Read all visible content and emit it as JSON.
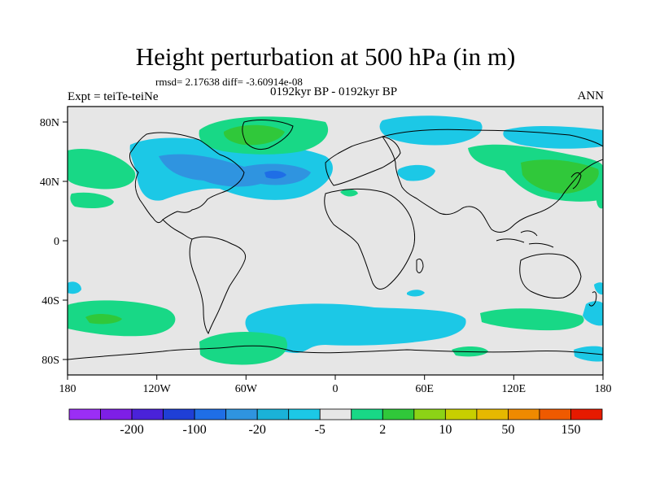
{
  "title": "Height perturbation at 500 hPa (in m)",
  "stats_line": "rmsd= 2.17638 diff= -3.60914e-08",
  "subtitle": "0192kyr BP - 0192kyr BP",
  "left_label": "Expt = teiTe-teiNe",
  "right_label": "ANN",
  "lat_ticks": [
    "80N",
    "40N",
    "0",
    "40S",
    "80S"
  ],
  "lon_ticks": [
    "180",
    "120W",
    "60W",
    "0",
    "60E",
    "120E",
    "180"
  ],
  "colorbar": {
    "colors": [
      "#9b2ef5",
      "#7e1fe6",
      "#4a22d9",
      "#1f3fd6",
      "#1f6ee6",
      "#2f94e0",
      "#1ab2d8",
      "#1cc8e6",
      "#e6e6e6",
      "#18d886",
      "#30c83a",
      "#8cd316",
      "#c8cf00",
      "#e6b800",
      "#ef8a00",
      "#ef5a00",
      "#e61a00"
    ],
    "labels": [
      "-200",
      "-100",
      "-20",
      "-5",
      "2",
      "10",
      "50",
      "150"
    ],
    "label_slots": [
      1,
      3,
      5,
      7,
      9,
      11,
      13,
      15
    ]
  },
  "anomaly_regions": [
    {
      "name": "north-atlantic-canada-low",
      "color": "#1cc8e6",
      "sign": "negative"
    },
    {
      "name": "north-atlantic-core-low",
      "color": "#2f94e0",
      "sign": "negative"
    },
    {
      "name": "greenland-high",
      "color": "#18d886",
      "sign": "positive"
    },
    {
      "name": "greenland-core-high",
      "color": "#30c83a",
      "sign": "positive"
    },
    {
      "name": "north-pacific-high",
      "color": "#18d886",
      "sign": "positive"
    },
    {
      "name": "east-asia-high",
      "color": "#18d886",
      "sign": "positive"
    },
    {
      "name": "east-asia-core-high",
      "color": "#30c83a",
      "sign": "positive"
    },
    {
      "name": "eurasia-arctic-low",
      "color": "#1cc8e6",
      "sign": "negative"
    },
    {
      "name": "southern-ocean-low",
      "color": "#1cc8e6",
      "sign": "negative"
    },
    {
      "name": "south-pacific-high",
      "color": "#18d886",
      "sign": "positive"
    },
    {
      "name": "antarctic-high",
      "color": "#18d886",
      "sign": "positive"
    }
  ]
}
